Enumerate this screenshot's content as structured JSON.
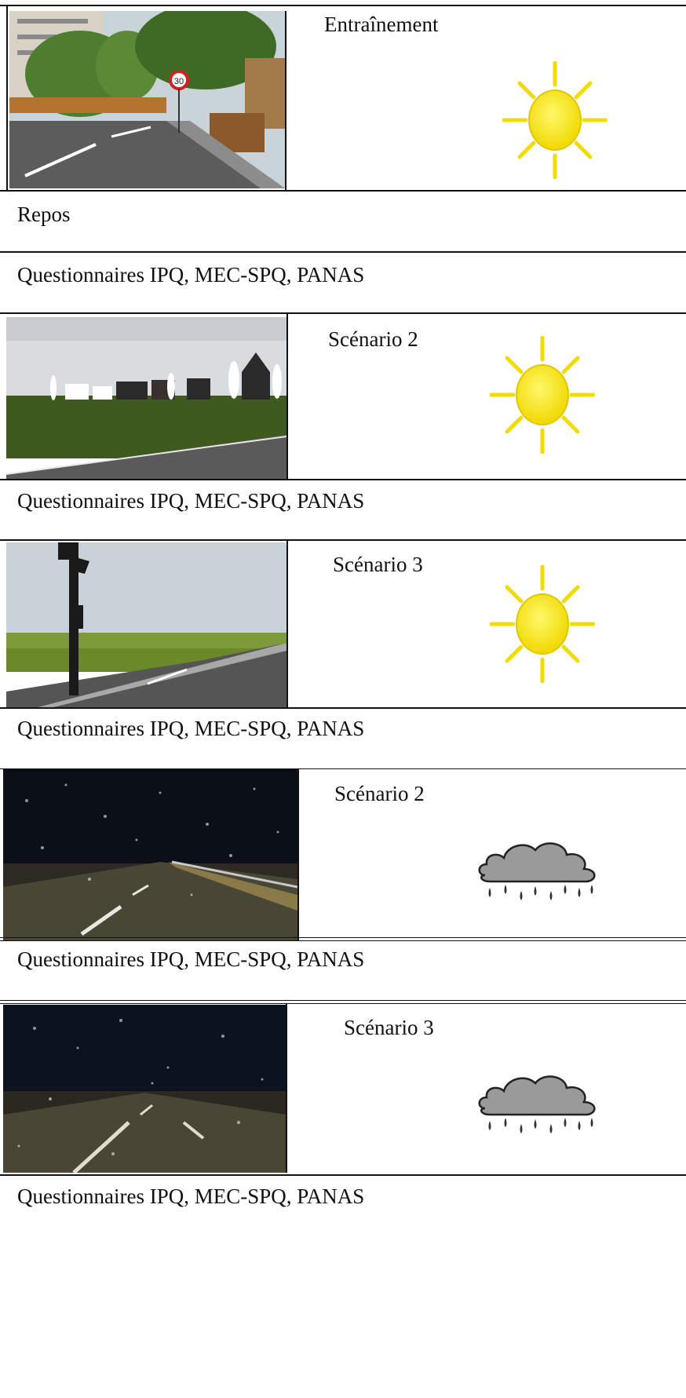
{
  "rows": [
    {
      "kind": "scenario",
      "title": "Entraînement",
      "weather": "sun-icon",
      "scene": "city-street-photo"
    },
    {
      "kind": "text",
      "label": "Repos"
    },
    {
      "kind": "text",
      "label": "Questionnaires IPQ, MEC-SPQ, PANAS"
    },
    {
      "kind": "scenario",
      "title": "Scénario 2",
      "weather": "sun-icon",
      "scene": "village-road-photo"
    },
    {
      "kind": "text",
      "label": "Questionnaires IPQ, MEC-SPQ, PANAS"
    },
    {
      "kind": "scenario",
      "title": "Scénario 3",
      "weather": "sun-icon",
      "scene": "traffic-light-road-photo"
    },
    {
      "kind": "text",
      "label": "Questionnaires IPQ, MEC-SPQ, PANAS"
    },
    {
      "kind": "scenario",
      "title": "Scénario 2",
      "weather": "rain-cloud-icon",
      "scene": "night-snow-guardrail-photo"
    },
    {
      "kind": "text",
      "label": "Questionnaires IPQ, MEC-SPQ, PANAS"
    },
    {
      "kind": "scenario",
      "title": "Scénario 3",
      "weather": "rain-cloud-icon",
      "scene": "night-snow-road-photo"
    },
    {
      "kind": "text",
      "label": "Questionnaires IPQ, MEC-SPQ, PANAS"
    }
  ],
  "colors": {
    "sun_fill": "#f7e800",
    "sun_ray": "#f0dc00",
    "cloud_fill": "#9a9a9a",
    "night_sky": "#0a0f18",
    "grass": "#4a6a2a",
    "asphalt": "#4a4a4a"
  }
}
